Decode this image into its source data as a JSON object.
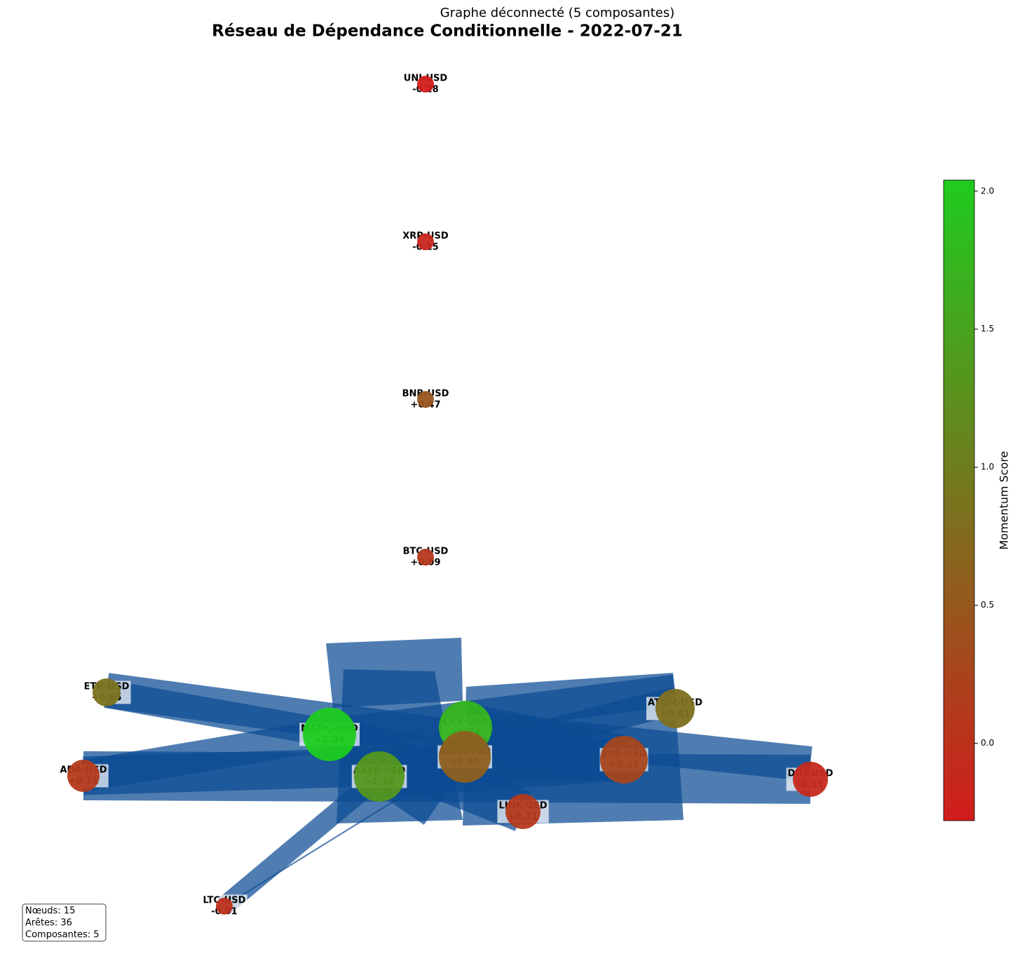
{
  "chart_data": {
    "type": "network",
    "title": "Réseau de Dépendance Conditionnelle - 2022-07-21",
    "subtitle": "Graphe déconnecté (5 composantes)",
    "nodes": [
      "UNI-USD",
      "XRP-USD",
      "BNB-USD",
      "BTC-USD",
      "ETH-USD",
      "ATOM-USD",
      "MATIC-USD",
      "CRV-USD",
      "AVAX-USD",
      "SOL-USD",
      "AAVE-USD",
      "ADA-USD",
      "DOT-USD",
      "LINK-USD",
      "LTC-USD"
    ],
    "values": [
      -0.28,
      -0.15,
      0.47,
      0.09,
      0.85,
      0.81,
      2.04,
      1.74,
      0.6,
      0.27,
      1.34,
      0.11,
      -0.11,
      0.11,
      -0.01
    ],
    "value_labels": [
      "-0.28",
      "-0.15",
      "+0.47",
      "+0.09",
      "+0.85",
      "+0.81",
      "+2.04",
      "+1.74",
      "+0.60",
      "+0.27",
      "+1.34",
      "+0.11",
      "-0.11",
      "+0.11",
      "-0.01"
    ],
    "colorbar": {
      "label": "Momentum Score",
      "lim": [
        -0.28,
        2.04
      ],
      "low_color": "#d21c1c",
      "high_color": "#1ecc1e",
      "ticks": [
        {
          "value": 0,
          "label": "0.0"
        },
        {
          "value": 0.5,
          "label": "0.5"
        },
        {
          "value": 1,
          "label": "1.0"
        },
        {
          "value": 1.5,
          "label": "1.5"
        },
        {
          "value": 2,
          "label": "2.0"
        }
      ]
    },
    "edge_color": "#0b4b93",
    "stats": [
      "Nœuds: 15",
      "Arêtes: 36",
      "Composantes: 5"
    ]
  }
}
